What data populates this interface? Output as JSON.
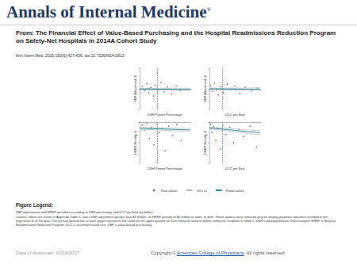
{
  "header": {
    "journal": "Annals of Internal Medicine",
    "journal_mark": "®",
    "source_prefix": "From:",
    "article_title": "The Financial Effect of Value-Based Purchasing and the Hospital Readmissions Reduction Program on Safety-Net Hospitals in 2014A Cohort Study",
    "citation": "Ann Intern Med. 2015;163(6):427-436. doi:10.7326/M14-2813"
  },
  "chart_data": [
    {
      "type": "scatter",
      "x_label": "DSH Patient Percentage",
      "y_label": "VBP Adjustment, $",
      "xlim": [
        0,
        100
      ],
      "xticks": [
        0,
        50,
        100
      ],
      "ylim": [
        -1000000,
        1000000
      ],
      "yticks": [
        -1000000,
        0,
        1000000
      ],
      "tick_labels": false,
      "grid": false,
      "legend": "bottom",
      "cutoff": 35,
      "series": [
        {
          "name": "Raw values",
          "type": "scatter",
          "color": "#555555",
          "values": [
            [
              5,
              120000
            ],
            [
              10,
              -80000
            ],
            [
              14,
              250000
            ],
            [
              18,
              -200000
            ],
            [
              22,
              60000
            ],
            [
              27,
              -350000
            ],
            [
              31,
              180000
            ],
            [
              36,
              -50000
            ],
            [
              42,
              300000
            ],
            [
              48,
              -150000
            ],
            [
              55,
              90000
            ],
            [
              63,
              -260000
            ],
            [
              72,
              140000
            ],
            [
              80,
              -90000
            ]
          ]
        },
        {
          "name": "95% CI",
          "type": "band",
          "color": "#bbbbbb",
          "values": [
            [
              0,
              -40000,
              20000
            ],
            [
              100,
              -90000,
              30000
            ]
          ]
        },
        {
          "name": "Fitted values",
          "type": "line",
          "color": "#2f8f9d",
          "values": [
            [
              0,
              -10000
            ],
            [
              100,
              -30000
            ]
          ]
        }
      ]
    },
    {
      "type": "scatter",
      "x_label": "UCC per Bed",
      "y_label": "VBP Adjustment, $",
      "xlim": [
        0,
        400000
      ],
      "xticks": [
        0,
        200000,
        400000
      ],
      "ylim": [
        -1000000,
        1000000
      ],
      "yticks": [
        -1000000,
        0,
        1000000
      ],
      "tick_labels": false,
      "grid": false,
      "legend": "bottom",
      "cutoff": 100000,
      "series": [
        {
          "name": "Raw values",
          "type": "scatter",
          "color": "#555555",
          "values": [
            [
              10000,
              150000
            ],
            [
              25000,
              -120000
            ],
            [
              40000,
              280000
            ],
            [
              55000,
              -60000
            ],
            [
              70000,
              -300000
            ],
            [
              90000,
              100000
            ],
            [
              110000,
              -180000
            ],
            [
              140000,
              220000
            ],
            [
              170000,
              -40000
            ],
            [
              200000,
              130000
            ],
            [
              240000,
              -220000
            ],
            [
              280000,
              70000
            ],
            [
              330000,
              -110000
            ],
            [
              380000,
              40000
            ]
          ]
        },
        {
          "name": "95% CI",
          "type": "band",
          "color": "#bbbbbb",
          "values": [
            [
              0,
              -30000,
              30000
            ],
            [
              400000,
              -80000,
              40000
            ]
          ]
        },
        {
          "name": "Fitted values",
          "type": "line",
          "color": "#2f8f9d",
          "values": [
            [
              0,
              0
            ],
            [
              400000,
              -20000
            ]
          ]
        }
      ]
    },
    {
      "type": "scatter",
      "x_label": "DSH Patient Percentage",
      "y_label": "HRRP Penalty, $",
      "xlim": [
        0,
        100
      ],
      "xticks": [
        0,
        50,
        100
      ],
      "ylim": [
        -2000000,
        0
      ],
      "yticks": [
        -2000000,
        -1000000,
        0
      ],
      "tick_labels": false,
      "grid": false,
      "legend": "bottom",
      "cutoff": 35,
      "series": [
        {
          "name": "Raw values",
          "type": "scatter",
          "color": "#555555",
          "values": [
            [
              5,
              -150000
            ],
            [
              9,
              -400000
            ],
            [
              14,
              -60000
            ],
            [
              19,
              -800000
            ],
            [
              23,
              -250000
            ],
            [
              28,
              -1100000
            ],
            [
              33,
              -90000
            ],
            [
              38,
              -500000
            ],
            [
              44,
              -300000
            ],
            [
              50,
              -1400000
            ],
            [
              57,
              -200000
            ],
            [
              65,
              -650000
            ],
            [
              73,
              -120000
            ],
            [
              82,
              -900000
            ]
          ]
        },
        {
          "name": "95% CI",
          "type": "band",
          "color": "#bbbbbb",
          "values": [
            [
              0,
              -340000,
              -260000
            ],
            [
              100,
              -460000,
              -300000
            ]
          ]
        },
        {
          "name": "Fitted values",
          "type": "line",
          "color": "#2f8f9d",
          "values": [
            [
              0,
              -300000
            ],
            [
              100,
              -380000
            ]
          ]
        }
      ]
    },
    {
      "type": "scatter",
      "x_label": "UCC per Bed",
      "y_label": "HRRP Penalty, $",
      "xlim": [
        0,
        400000
      ],
      "xticks": [
        0,
        200000,
        400000
      ],
      "ylim": [
        -2000000,
        0
      ],
      "yticks": [
        -2000000,
        -1000000,
        0
      ],
      "tick_labels": false,
      "grid": false,
      "legend": "bottom",
      "cutoff": 100000,
      "series": [
        {
          "name": "Raw values",
          "type": "scatter",
          "color": "#555555",
          "values": [
            [
              10000,
              -100000
            ],
            [
              20000,
              -500000
            ],
            [
              35000,
              -220000
            ],
            [
              50000,
              -900000
            ],
            [
              65000,
              -300000
            ],
            [
              85000,
              -1300000
            ],
            [
              105000,
              -150000
            ],
            [
              130000,
              -600000
            ],
            [
              160000,
              -250000
            ],
            [
              190000,
              -1000000
            ],
            [
              230000,
              -350000
            ],
            [
              270000,
              -700000
            ],
            [
              320000,
              -200000
            ],
            [
              370000,
              -1200000
            ]
          ]
        },
        {
          "name": "95% CI",
          "type": "band",
          "color": "#bbbbbb",
          "values": [
            [
              0,
              -320000,
              -240000
            ],
            [
              400000,
              -620000,
              -420000
            ]
          ]
        },
        {
          "name": "Fitted values",
          "type": "line",
          "color": "#2f8f9d",
          "values": [
            [
              0,
              -280000
            ],
            [
              400000,
              -520000
            ]
          ]
        }
      ]
    }
  ],
  "figure_legend": {
    "title": "Figure Legend:",
    "paragraphs": [
      "VBP adjustments and HRRP penalties according to DSH percentage and UCC per bed, by dollars.",
      "Outliers, which are shown in Appendix Table 3, had a VBP adjustment greater than $1 million, an HRRP penalty of $2 million or more, or both. These outliers were removed only for display purposes and were included in the regression fit of the data. The vertical dashed line in each graph represents the cutoff for the upper quartile on each measure used to define safety-net hospitals in Table 2. DSH = disproportionate share hospital; HRRP = Hospital Readmissions Reduction Program; UCC = uncompensated care; VBP = value-based purchasing."
    ]
  },
  "footer": {
    "download": "Date of download:  10/24/2017",
    "copyright_prefix": "Copyright ©",
    "copyright_holder": "American College of Physicians",
    "copyright_suffix": ". All rights reserved."
  }
}
